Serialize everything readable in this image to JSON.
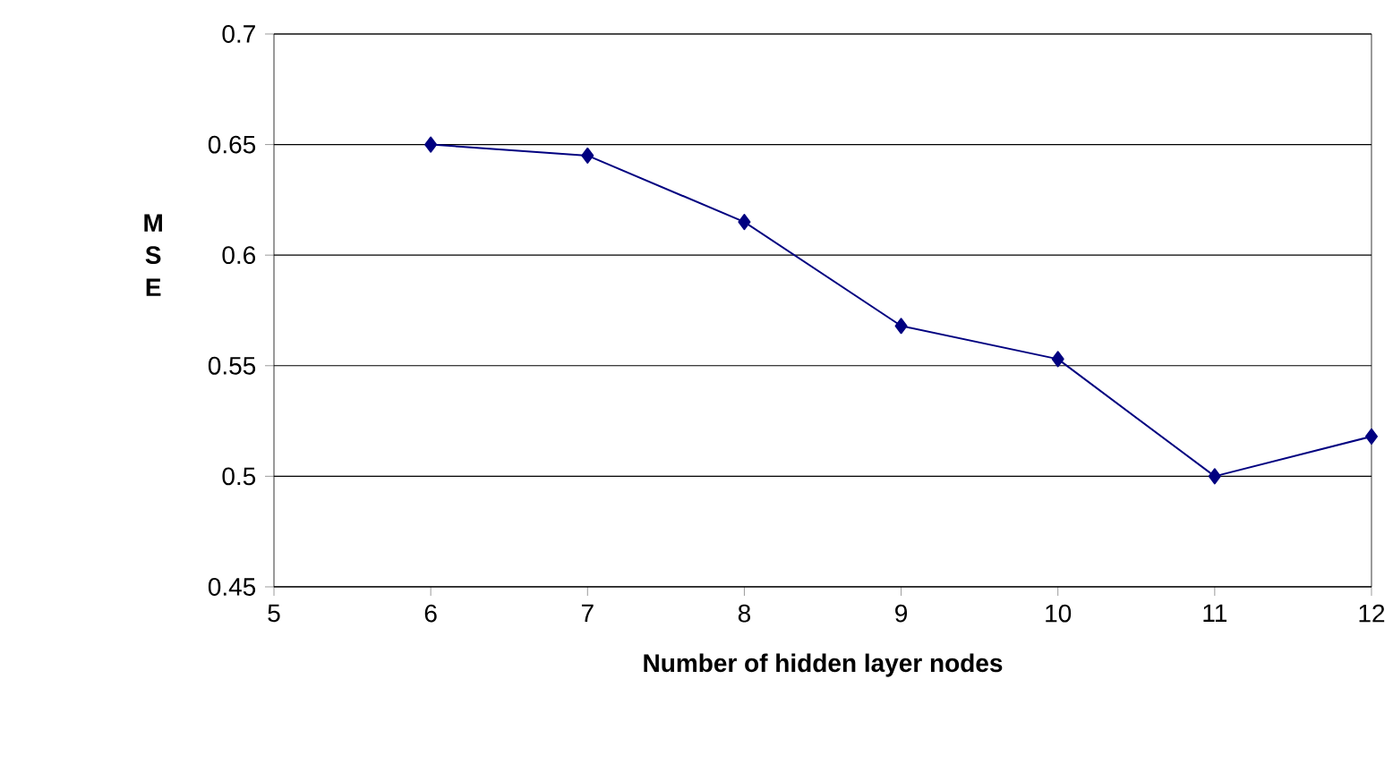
{
  "chart_data": {
    "type": "line",
    "xlabel": "Number of hidden layer nodes",
    "ylabel": "M S E",
    "x": [
      6,
      7,
      8,
      9,
      10,
      11,
      12
    ],
    "series": [
      {
        "color": "#000080",
        "values": [
          0.65,
          0.645,
          0.615,
          0.568,
          0.553,
          0.5,
          0.518
        ]
      }
    ],
    "xlim": [
      5,
      12
    ],
    "xticks": [
      5,
      6,
      7,
      8,
      9,
      10,
      11,
      12
    ],
    "ylim": [
      0.45,
      0.7
    ],
    "yticks": [
      0.45,
      0.5,
      0.55,
      0.6,
      0.65,
      0.7
    ],
    "grid": "y",
    "marker": "diamond",
    "line_style": "solid"
  }
}
